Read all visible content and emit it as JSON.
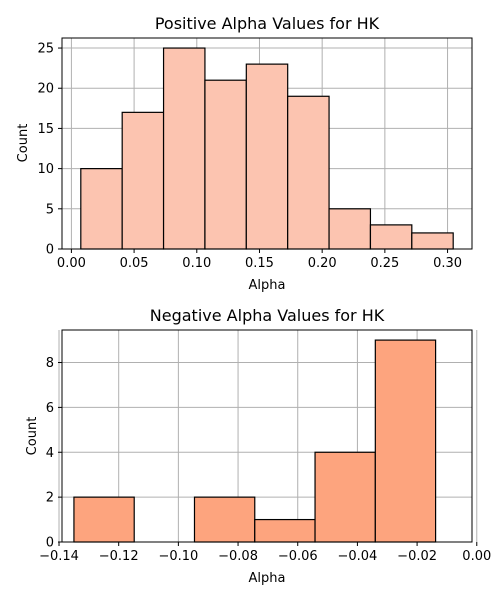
{
  "chart_data": [
    {
      "type": "bar",
      "title": "Positive Alpha Values for HK",
      "xlabel": "Alpha",
      "ylabel": "Count",
      "bin_edges": [
        0.0075,
        0.0405,
        0.0735,
        0.1065,
        0.1395,
        0.1725,
        0.2055,
        0.2385,
        0.2715,
        0.3045
      ],
      "values": [
        10,
        17,
        25,
        21,
        23,
        19,
        5,
        3,
        2
      ],
      "xlim": [
        -0.0075,
        0.3195
      ],
      "ylim": [
        0,
        26.25
      ],
      "xticks": [
        0.0,
        0.05,
        0.1,
        0.15,
        0.2,
        0.25,
        0.3
      ],
      "xtick_labels": [
        "0.00",
        "0.05",
        "0.10",
        "0.15",
        "0.20",
        "0.25",
        "0.30"
      ],
      "yticks": [
        0,
        5,
        10,
        15,
        20,
        25
      ],
      "ytick_labels": [
        "0",
        "5",
        "10",
        "15",
        "20",
        "25"
      ],
      "grid": true,
      "color": "#fcc4b0"
    },
    {
      "type": "bar",
      "title": "Negative Alpha Values for HK",
      "xlabel": "Alpha",
      "ylabel": "Count",
      "bin_edges": [
        -0.135,
        -0.1148,
        -0.0946,
        -0.0744,
        -0.0542,
        -0.034,
        -0.0138
      ],
      "values": [
        2,
        0,
        2,
        1,
        4,
        9
      ],
      "xlim": [
        -0.139,
        -0.0016
      ],
      "ylim": [
        0,
        9.45
      ],
      "xticks": [
        -0.14,
        -0.12,
        -0.1,
        -0.08,
        -0.06,
        -0.04,
        -0.02,
        0.0
      ],
      "xtick_labels": [
        "−0.14",
        "−0.12",
        "−0.10",
        "−0.08",
        "−0.06",
        "−0.04",
        "−0.02",
        "0.00"
      ],
      "yticks": [
        0,
        2,
        4,
        6,
        8
      ],
      "ytick_labels": [
        "0",
        "2",
        "4",
        "6",
        "8"
      ],
      "grid": true,
      "color": "#fda47e"
    }
  ]
}
